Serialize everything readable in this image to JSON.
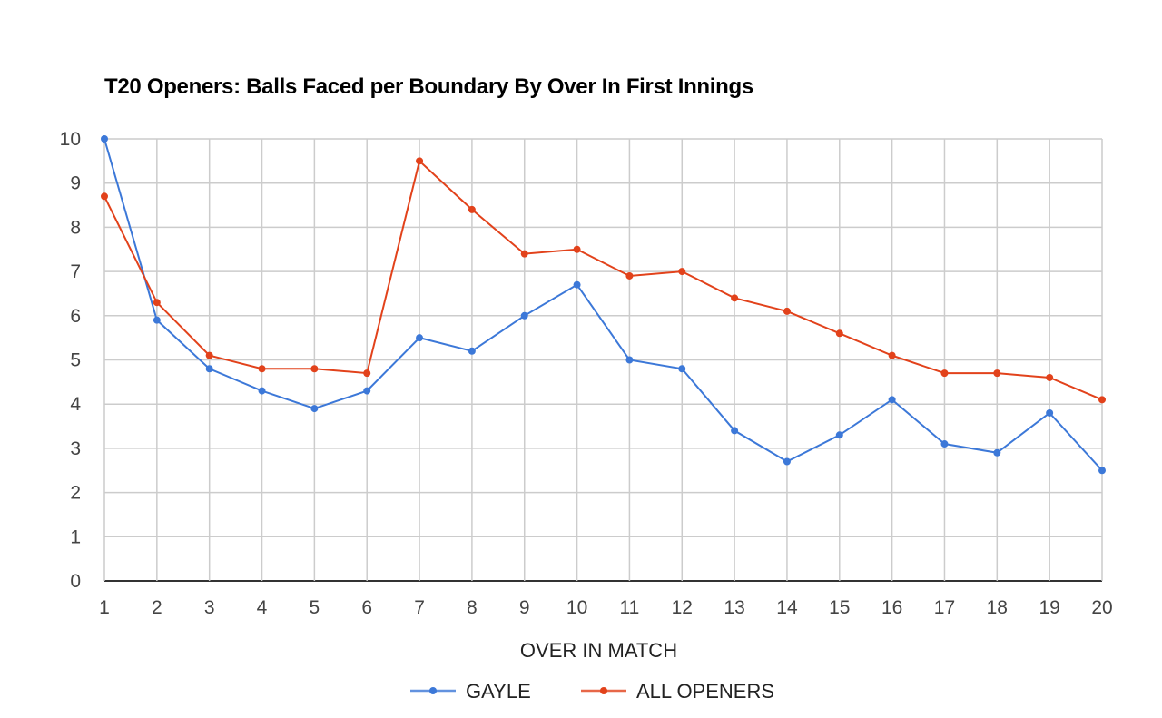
{
  "chart_data": {
    "type": "line",
    "title": "T20 Openers: Balls Faced per Boundary By Over In First Innings",
    "xlabel": "OVER IN MATCH",
    "ylabel": "",
    "x": [
      1,
      2,
      3,
      4,
      5,
      6,
      7,
      8,
      9,
      10,
      11,
      12,
      13,
      14,
      15,
      16,
      17,
      18,
      19,
      20
    ],
    "ylim": [
      0,
      10
    ],
    "yticks": [
      0,
      1,
      2,
      3,
      4,
      5,
      6,
      7,
      8,
      9,
      10
    ],
    "grid": true,
    "legend_position": "bottom",
    "series": [
      {
        "name": "GAYLE",
        "color": "#3c78d8",
        "values": [
          10,
          5.9,
          4.8,
          4.3,
          3.9,
          4.3,
          5.5,
          5.2,
          6.0,
          6.7,
          5.0,
          4.8,
          3.4,
          2.7,
          3.3,
          4.1,
          3.1,
          2.9,
          3.8,
          2.5
        ]
      },
      {
        "name": "ALL OPENERS",
        "color": "#e2421b",
        "values": [
          8.7,
          6.3,
          5.1,
          4.8,
          4.8,
          4.7,
          9.5,
          8.4,
          7.4,
          7.5,
          6.9,
          7.0,
          6.4,
          6.1,
          5.6,
          5.1,
          4.7,
          4.7,
          4.6,
          4.1
        ]
      }
    ]
  }
}
